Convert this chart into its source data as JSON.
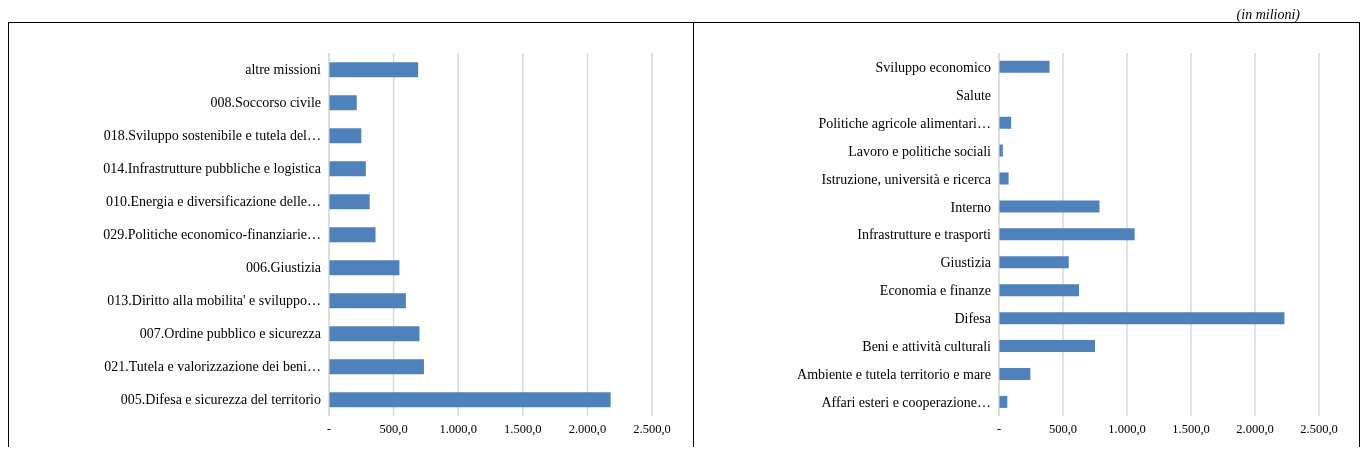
{
  "chart_data": [
    {
      "type": "bar",
      "orientation": "horizontal",
      "categories": [
        "altre missioni",
        "008.Soccorso civile",
        "018.Sviluppo sostenibile e tutela del…",
        "014.Infrastrutture pubbliche e logistica",
        "010.Energia e diversificazione delle…",
        "029.Politiche economico-finanziarie…",
        "006.Giustizia",
        "013.Diritto alla mobilita' e sviluppo…",
        "007.Ordine pubblico e sicurezza",
        "021.Tutela e valorizzazione dei beni…",
        "005.Difesa e sicurezza del territorio"
      ],
      "values": [
        690,
        215,
        250,
        285,
        315,
        360,
        545,
        595,
        700,
        735,
        2180
      ],
      "color": "#4f81bd",
      "xlim": [
        0,
        2500
      ],
      "xticks": [
        {
          "value": 0,
          "label": "-"
        },
        {
          "value": 500,
          "label": "500,0"
        },
        {
          "value": 1000,
          "label": "1.000,0"
        },
        {
          "value": 1500,
          "label": "1.500,0"
        },
        {
          "value": 2000,
          "label": "2.000,0"
        },
        {
          "value": 2500,
          "label": "2.500,0"
        }
      ],
      "grid": "x",
      "legend": false
    },
    {
      "type": "bar",
      "orientation": "horizontal",
      "categories": [
        "Sviluppo economico",
        "Salute",
        "Politiche agricole alimentari…",
        "Lavoro e politiche sociali",
        "Istruzione, università e ricerca",
        "Interno",
        "Infrastrutture e trasporti",
        "Giustizia",
        "Economia e finanze",
        "Difesa",
        "Beni e attività culturali",
        "Ambiente e tutela territorio e mare",
        "Affari esteri e cooperazione…"
      ],
      "values": [
        395,
        0,
        95,
        30,
        75,
        785,
        1060,
        545,
        625,
        2230,
        750,
        245,
        65
      ],
      "color": "#4f81bd",
      "xlim": [
        0,
        2500
      ],
      "xticks": [
        {
          "value": 0,
          "label": "-"
        },
        {
          "value": 500,
          "label": "500,0"
        },
        {
          "value": 1000,
          "label": "1.000,0"
        },
        {
          "value": 1500,
          "label": "1.500,0"
        },
        {
          "value": 2000,
          "label": "2.000,0"
        },
        {
          "value": 2500,
          "label": "2.500,0"
        }
      ],
      "grid": "x",
      "legend": false,
      "annotations": [
        "(in milioni)"
      ]
    }
  ]
}
